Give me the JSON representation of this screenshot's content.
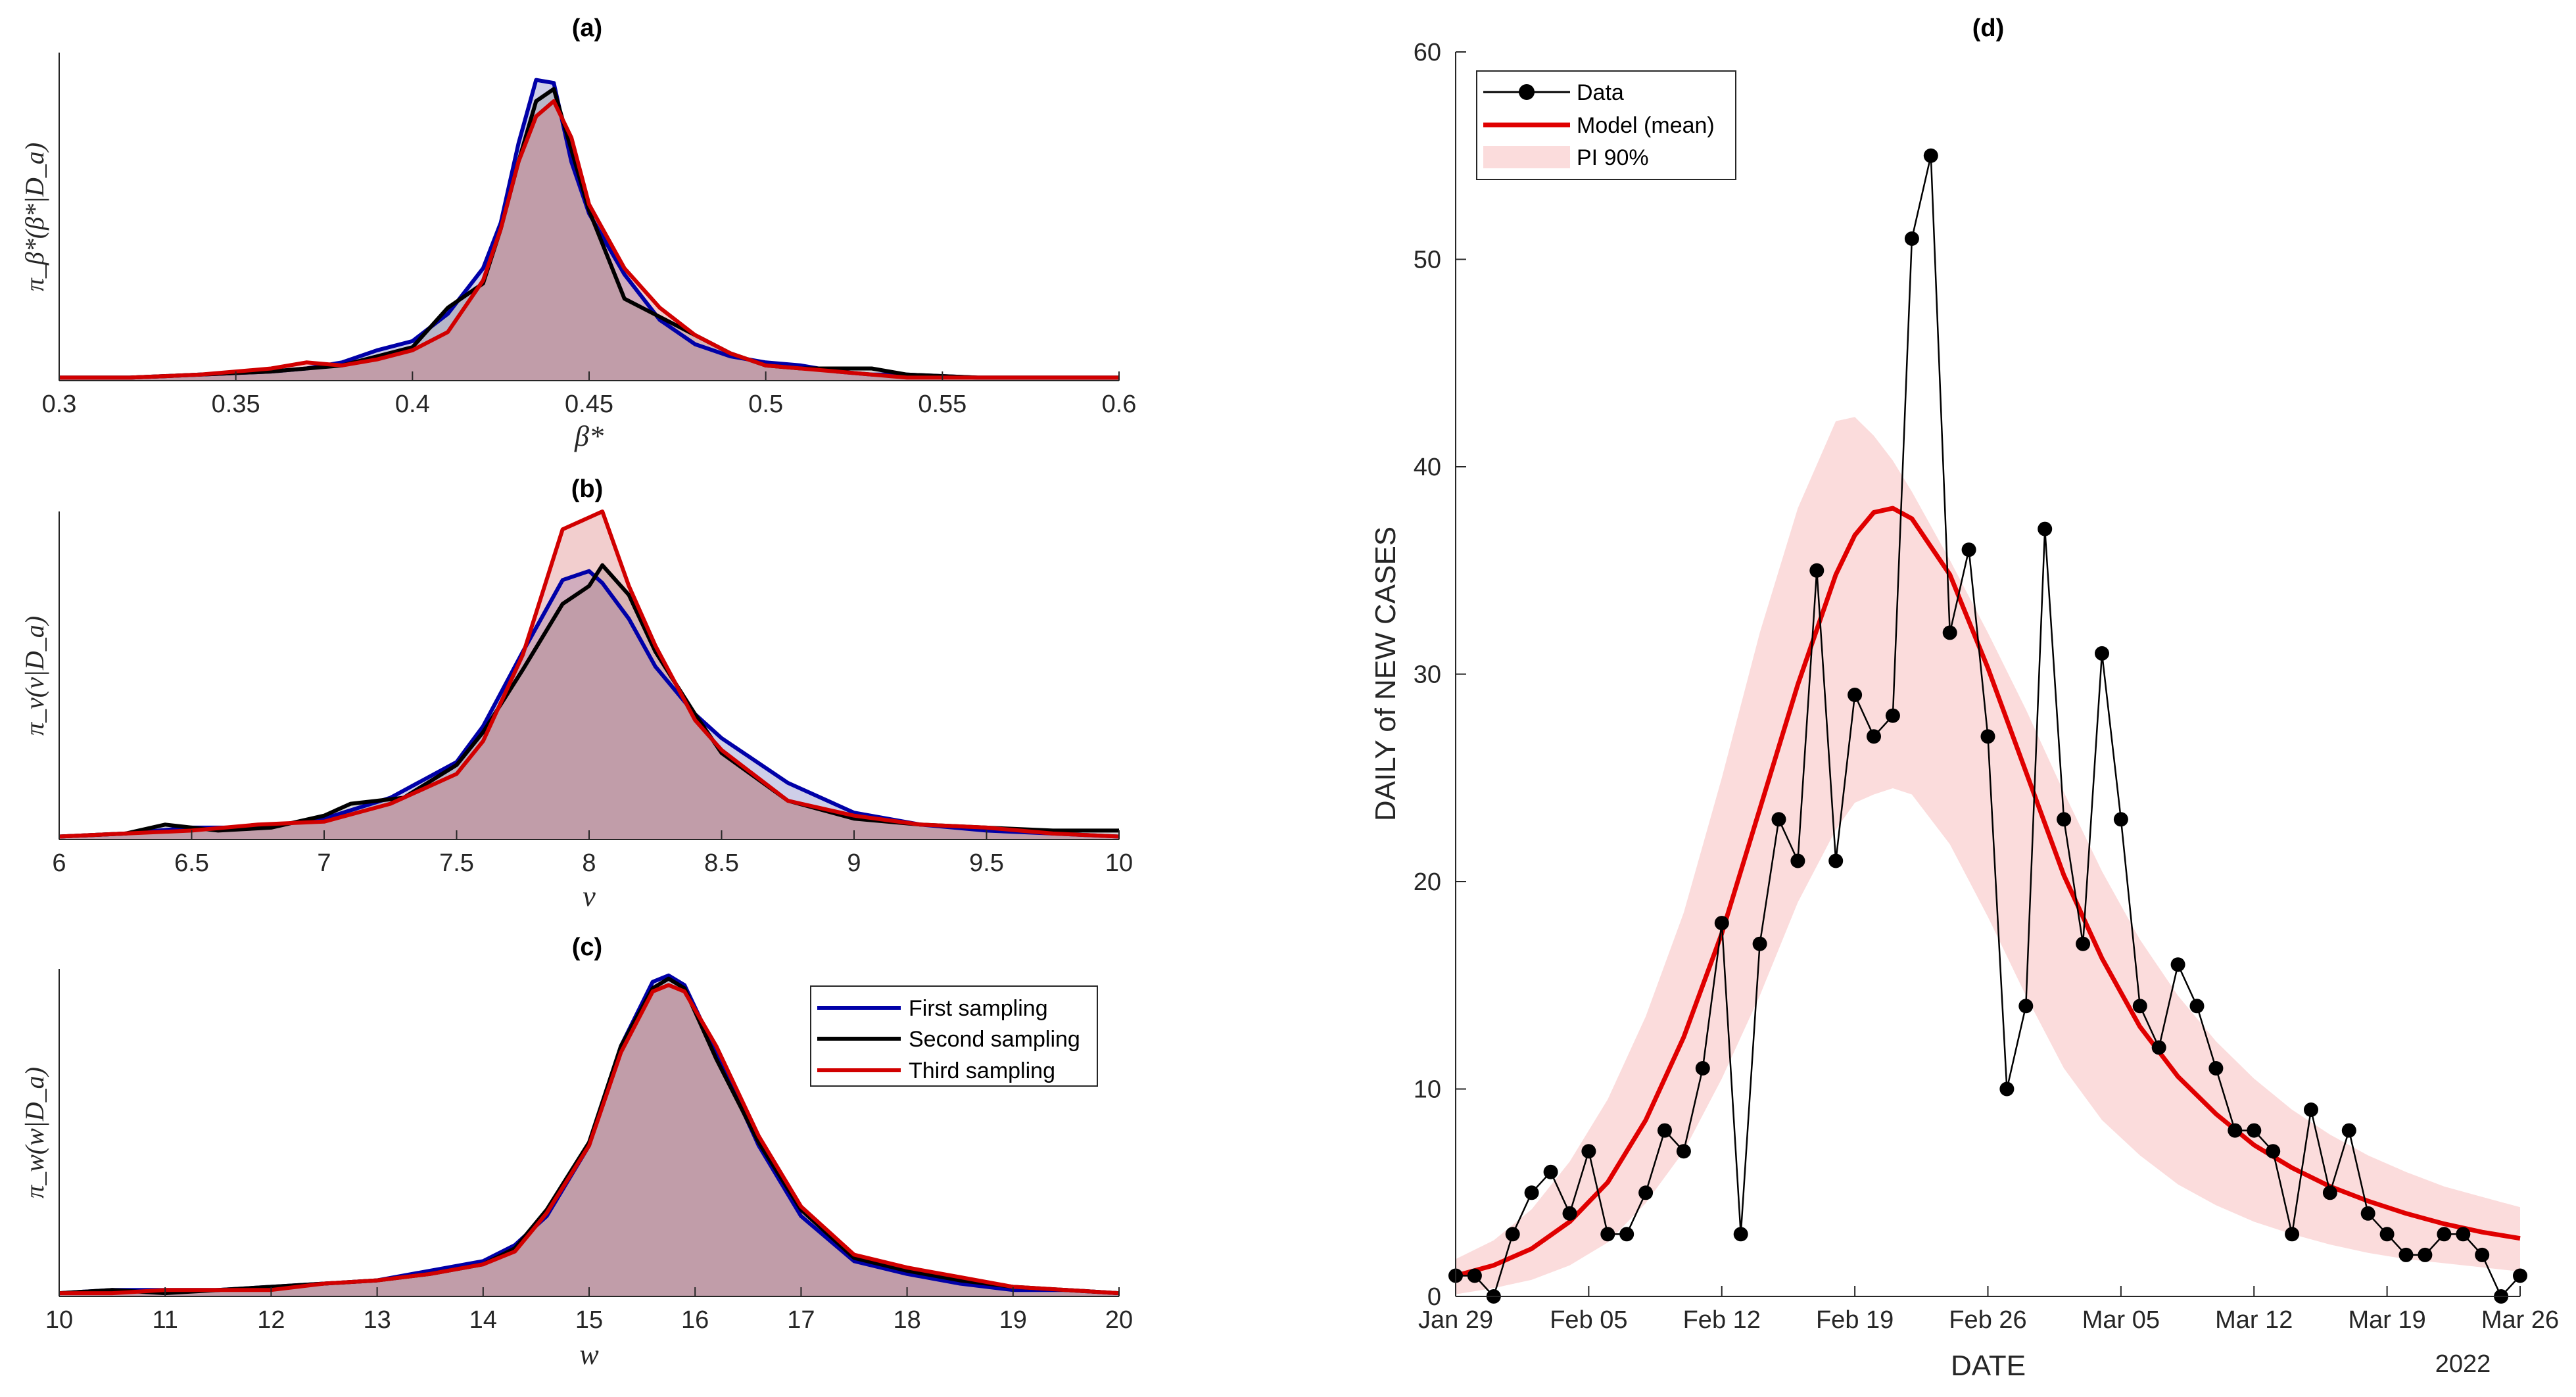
{
  "chart_data": [
    {
      "id": "a",
      "type": "area",
      "title": "(a)",
      "xlabel": "β*",
      "ylabel": "π_β*(β*|D_a)",
      "xlim": [
        0.3,
        0.6
      ],
      "ylim": [
        0,
        1.08
      ],
      "xticks": [
        0.3,
        0.35,
        0.4,
        0.45,
        0.5,
        0.55,
        0.6
      ],
      "xtick_labels": [
        "0.3",
        "0.35",
        "0.4",
        "0.45",
        "0.5",
        "0.55",
        "0.6"
      ],
      "series": [
        {
          "name": "First sampling",
          "color": "#0000a8",
          "x": [
            0.3,
            0.32,
            0.34,
            0.36,
            0.37,
            0.38,
            0.39,
            0.4,
            0.41,
            0.42,
            0.425,
            0.43,
            0.435,
            0.44,
            0.445,
            0.45,
            0.46,
            0.47,
            0.48,
            0.49,
            0.5,
            0.51,
            0.52,
            0.53,
            0.54,
            0.56,
            0.58,
            0.6
          ],
          "y": [
            0.01,
            0.01,
            0.02,
            0.03,
            0.04,
            0.06,
            0.1,
            0.13,
            0.22,
            0.37,
            0.52,
            0.78,
            0.99,
            0.98,
            0.72,
            0.55,
            0.35,
            0.2,
            0.12,
            0.08,
            0.06,
            0.05,
            0.03,
            0.02,
            0.02,
            0.01,
            0.01,
            0.01
          ]
        },
        {
          "name": "Second sampling",
          "color": "#000000",
          "x": [
            0.3,
            0.32,
            0.34,
            0.36,
            0.37,
            0.38,
            0.39,
            0.4,
            0.41,
            0.42,
            0.425,
            0.43,
            0.435,
            0.44,
            0.445,
            0.45,
            0.46,
            0.47,
            0.48,
            0.49,
            0.5,
            0.51,
            0.52,
            0.53,
            0.54,
            0.56,
            0.58,
            0.6
          ],
          "y": [
            0.01,
            0.01,
            0.02,
            0.03,
            0.04,
            0.05,
            0.08,
            0.11,
            0.24,
            0.32,
            0.5,
            0.72,
            0.92,
            0.96,
            0.76,
            0.56,
            0.27,
            0.21,
            0.15,
            0.09,
            0.05,
            0.04,
            0.04,
            0.04,
            0.02,
            0.01,
            0.01,
            0.01
          ]
        },
        {
          "name": "Third sampling",
          "color": "#d10000",
          "x": [
            0.3,
            0.32,
            0.34,
            0.36,
            0.37,
            0.38,
            0.39,
            0.4,
            0.41,
            0.42,
            0.425,
            0.43,
            0.435,
            0.44,
            0.445,
            0.45,
            0.46,
            0.47,
            0.48,
            0.49,
            0.5,
            0.51,
            0.52,
            0.53,
            0.54,
            0.56,
            0.58,
            0.6
          ],
          "y": [
            0.01,
            0.01,
            0.02,
            0.04,
            0.06,
            0.05,
            0.07,
            0.1,
            0.16,
            0.33,
            0.5,
            0.72,
            0.87,
            0.92,
            0.8,
            0.58,
            0.37,
            0.24,
            0.15,
            0.09,
            0.05,
            0.04,
            0.03,
            0.02,
            0.01,
            0.01,
            0.01,
            0.01
          ]
        }
      ]
    },
    {
      "id": "b",
      "type": "area",
      "title": "(b)",
      "xlabel": "v",
      "ylabel": "π_v(v|D_a)",
      "xlim": [
        6,
        10
      ],
      "ylim": [
        0,
        1.1
      ],
      "xticks": [
        6,
        6.5,
        7,
        7.5,
        8,
        8.5,
        9,
        9.5,
        10
      ],
      "xtick_labels": [
        "6",
        "6.5",
        "7",
        "7.5",
        "8",
        "8.5",
        "9",
        "9.5",
        "10"
      ],
      "series": [
        {
          "name": "First sampling",
          "color": "#0000a8",
          "x": [
            6.0,
            6.25,
            6.5,
            6.75,
            7.0,
            7.25,
            7.5,
            7.6,
            7.75,
            7.9,
            8.0,
            8.05,
            8.15,
            8.25,
            8.4,
            8.5,
            8.75,
            9.0,
            9.25,
            9.5,
            9.75,
            10.0
          ],
          "y": [
            0.01,
            0.02,
            0.04,
            0.04,
            0.07,
            0.14,
            0.26,
            0.38,
            0.63,
            0.87,
            0.9,
            0.86,
            0.74,
            0.58,
            0.42,
            0.34,
            0.19,
            0.09,
            0.05,
            0.03,
            0.02,
            0.01
          ]
        },
        {
          "name": "Second sampling",
          "color": "#000000",
          "x": [
            6.0,
            6.25,
            6.4,
            6.6,
            6.8,
            7.0,
            7.1,
            7.3,
            7.5,
            7.6,
            7.75,
            7.9,
            8.0,
            8.05,
            8.15,
            8.25,
            8.4,
            8.5,
            8.75,
            9.0,
            9.25,
            9.5,
            9.75,
            10.0
          ],
          "y": [
            0.01,
            0.02,
            0.05,
            0.03,
            0.04,
            0.08,
            0.12,
            0.14,
            0.25,
            0.36,
            0.57,
            0.79,
            0.85,
            0.92,
            0.82,
            0.63,
            0.42,
            0.29,
            0.13,
            0.07,
            0.05,
            0.04,
            0.03,
            0.03
          ]
        },
        {
          "name": "Third sampling",
          "color": "#d10000",
          "x": [
            6.0,
            6.25,
            6.5,
            6.75,
            7.0,
            7.25,
            7.5,
            7.6,
            7.75,
            7.9,
            8.05,
            8.15,
            8.25,
            8.4,
            8.5,
            8.75,
            9.0,
            9.25,
            9.5,
            9.75,
            10.0
          ],
          "y": [
            0.01,
            0.02,
            0.03,
            0.05,
            0.06,
            0.12,
            0.22,
            0.33,
            0.62,
            1.04,
            1.1,
            0.85,
            0.65,
            0.4,
            0.3,
            0.13,
            0.08,
            0.05,
            0.04,
            0.02,
            0.01
          ]
        }
      ]
    },
    {
      "id": "c",
      "type": "area",
      "title": "(c)",
      "xlabel": "w",
      "ylabel": "π_w(w|D_a)",
      "xlim": [
        10,
        20
      ],
      "ylim": [
        0,
        1.02
      ],
      "xticks": [
        10,
        11,
        12,
        13,
        14,
        15,
        16,
        17,
        18,
        19,
        20
      ],
      "xtick_labels": [
        "10",
        "11",
        "12",
        "13",
        "14",
        "15",
        "16",
        "17",
        "18",
        "19",
        "20"
      ],
      "legend": {
        "position": "top-right",
        "entries": [
          "First sampling",
          "Second sampling",
          "Third sampling"
        ]
      },
      "series": [
        {
          "name": "First sampling",
          "color": "#0000a8",
          "x": [
            10,
            10.5,
            11,
            11.5,
            12,
            12.5,
            13,
            13.5,
            14,
            14.3,
            14.6,
            15.0,
            15.3,
            15.6,
            15.75,
            15.9,
            16.2,
            16.6,
            17,
            17.5,
            18,
            18.5,
            19,
            19.5,
            20
          ],
          "y": [
            0.01,
            0.02,
            0.02,
            0.02,
            0.03,
            0.04,
            0.05,
            0.08,
            0.11,
            0.16,
            0.25,
            0.47,
            0.78,
            0.98,
            1.0,
            0.97,
            0.76,
            0.47,
            0.25,
            0.11,
            0.07,
            0.04,
            0.02,
            0.02,
            0.01
          ]
        },
        {
          "name": "Second sampling",
          "color": "#000000",
          "x": [
            10,
            10.5,
            11,
            11.5,
            12,
            12.5,
            13,
            13.5,
            14,
            14.3,
            14.6,
            15.0,
            15.3,
            15.6,
            15.75,
            15.9,
            16.2,
            16.6,
            17,
            17.5,
            18,
            18.5,
            19,
            19.5,
            20
          ],
          "y": [
            0.01,
            0.02,
            0.01,
            0.02,
            0.03,
            0.04,
            0.05,
            0.07,
            0.1,
            0.15,
            0.27,
            0.48,
            0.78,
            0.96,
            0.99,
            0.96,
            0.74,
            0.48,
            0.27,
            0.12,
            0.08,
            0.05,
            0.03,
            0.02,
            0.01
          ]
        },
        {
          "name": "Third sampling",
          "color": "#d10000",
          "x": [
            10,
            10.5,
            11,
            11.5,
            12,
            12.5,
            13,
            13.5,
            14,
            14.3,
            14.6,
            15.0,
            15.3,
            15.6,
            15.75,
            15.9,
            16.2,
            16.6,
            17,
            17.5,
            18,
            18.5,
            19,
            19.5,
            20
          ],
          "y": [
            0.01,
            0.01,
            0.02,
            0.02,
            0.02,
            0.04,
            0.05,
            0.07,
            0.1,
            0.14,
            0.26,
            0.47,
            0.76,
            0.95,
            0.97,
            0.95,
            0.78,
            0.5,
            0.28,
            0.13,
            0.09,
            0.06,
            0.03,
            0.02,
            0.01
          ]
        }
      ]
    },
    {
      "id": "d",
      "type": "line",
      "title": "(d)",
      "xlabel": "DATE",
      "ylabel": "DAILY of NEW CASES",
      "xlim": [
        0,
        56
      ],
      "ylim": [
        0,
        60
      ],
      "xticks": [
        0,
        7,
        14,
        21,
        28,
        35,
        42,
        49,
        56
      ],
      "xtick_labels": [
        "Jan 29",
        "Feb 05",
        "Feb 12",
        "Feb 19",
        "Feb 26",
        "Mar 05",
        "Mar 12",
        "Mar 19",
        "Mar 26"
      ],
      "yticks": [
        0,
        10,
        20,
        30,
        40,
        50,
        60
      ],
      "year_label": "2022",
      "legend": {
        "position": "top-left",
        "entries": [
          "Data",
          "Model (mean)",
          "PI 90%"
        ]
      },
      "series": [
        {
          "name": "Data",
          "color": "#000000",
          "x": [
            0,
            1,
            2,
            3,
            4,
            5,
            6,
            7,
            8,
            9,
            10,
            11,
            12,
            13,
            14,
            15,
            16,
            17,
            18,
            19,
            20,
            21,
            22,
            23,
            24,
            25,
            26,
            27,
            28,
            29,
            30,
            31,
            32,
            33,
            34,
            35,
            36,
            37,
            38,
            39,
            40,
            41,
            42,
            43,
            44,
            45,
            46,
            47,
            48,
            49,
            50,
            51,
            52,
            53,
            54,
            55,
            56
          ],
          "values": [
            1,
            1,
            0,
            3,
            5,
            6,
            4,
            7,
            3,
            3,
            5,
            8,
            7,
            11,
            18,
            3,
            17,
            23,
            21,
            35,
            21,
            29,
            27,
            28,
            51,
            55,
            32,
            36,
            27,
            10,
            14,
            37,
            23,
            17,
            31,
            23,
            14,
            12,
            16,
            14,
            11,
            8,
            8,
            7,
            3,
            9,
            5,
            8,
            4,
            3,
            2,
            2,
            3,
            3,
            2,
            0,
            1
          ]
        },
        {
          "name": "Model (mean)",
          "color": "#e00000",
          "x": [
            0,
            2,
            4,
            6,
            8,
            10,
            12,
            14,
            16,
            18,
            20,
            21,
            22,
            23,
            24,
            26,
            28,
            30,
            32,
            34,
            36,
            38,
            40,
            42,
            44,
            46,
            48,
            50,
            52,
            54,
            56
          ],
          "values": [
            1.0,
            1.5,
            2.3,
            3.6,
            5.5,
            8.5,
            12.5,
            17.5,
            23.5,
            29.5,
            34.8,
            36.7,
            37.8,
            38.0,
            37.5,
            34.8,
            30.3,
            25.3,
            20.3,
            16.3,
            13.0,
            10.6,
            8.8,
            7.3,
            6.2,
            5.3,
            4.6,
            4.0,
            3.5,
            3.1,
            2.8
          ]
        },
        {
          "name": "PI 90%",
          "color": "#fbdcdc",
          "x": [
            0,
            2,
            4,
            6,
            8,
            10,
            12,
            14,
            16,
            18,
            20,
            21,
            22,
            23,
            24,
            26,
            28,
            30,
            32,
            34,
            36,
            38,
            40,
            42,
            44,
            46,
            48,
            50,
            52,
            54,
            56
          ],
          "lower": [
            0.1,
            0.4,
            0.8,
            1.5,
            2.6,
            4.5,
            7.0,
            10.5,
            14.5,
            19.0,
            22.5,
            23.8,
            24.2,
            24.5,
            24.2,
            21.8,
            18.3,
            14.5,
            11.0,
            8.5,
            6.8,
            5.4,
            4.4,
            3.6,
            3.0,
            2.5,
            2.1,
            1.8,
            1.6,
            1.4,
            1.2
          ],
          "upper": [
            1.8,
            2.7,
            4.2,
            6.5,
            9.5,
            13.5,
            18.5,
            25.0,
            32.0,
            38.0,
            42.2,
            42.4,
            41.5,
            40.3,
            38.8,
            35.5,
            32.0,
            28.3,
            24.3,
            20.5,
            17.2,
            14.5,
            12.3,
            10.5,
            9.0,
            7.8,
            6.8,
            6.0,
            5.3,
            4.8,
            4.3
          ]
        }
      ]
    }
  ]
}
